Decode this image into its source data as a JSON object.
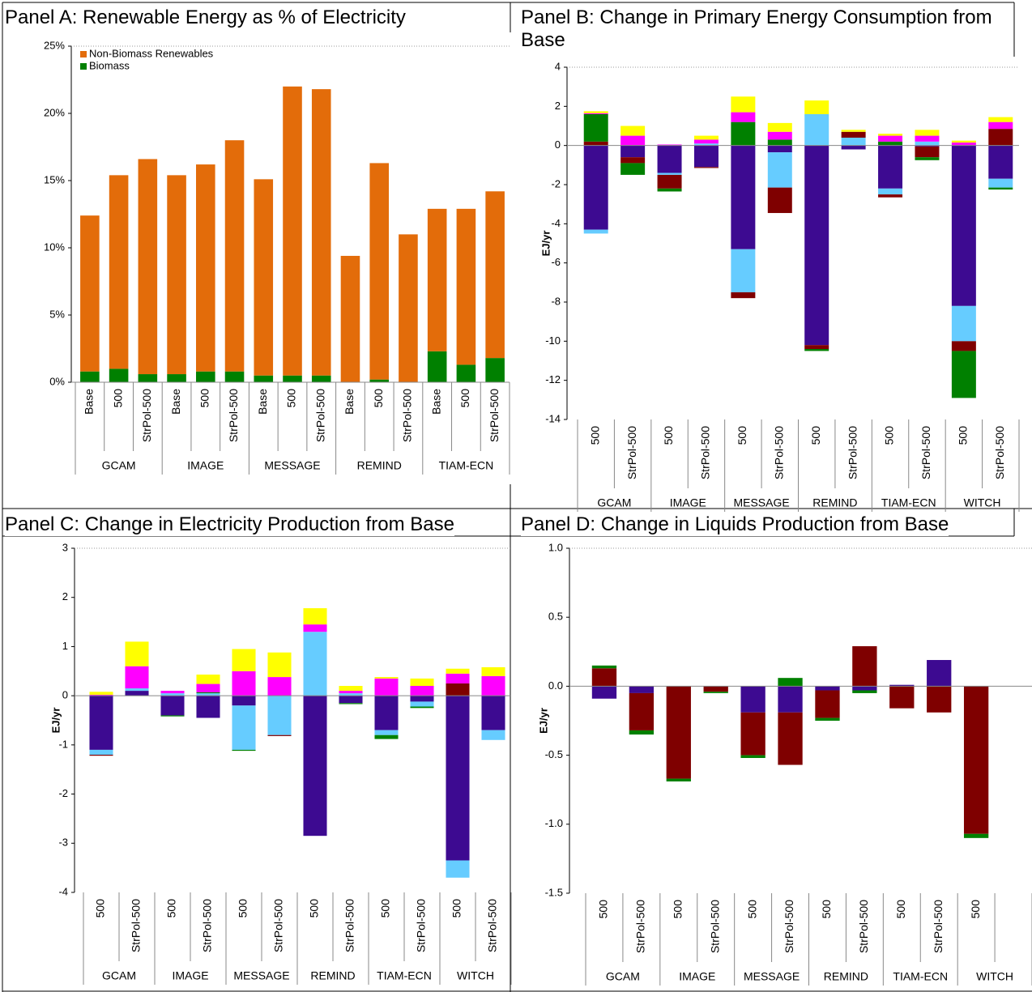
{
  "chart_data": [
    {
      "type": "bar",
      "stacked": true,
      "title": "Panel A: Renewable Energy as % of Electricity",
      "categories": [
        "Base",
        "500",
        "StrPol-500",
        "Base",
        "500",
        "StrPol-500",
        "Base",
        "500",
        "StrPol-500",
        "Base",
        "500",
        "StrPol-500",
        "Base",
        "500",
        "StrPol-500"
      ],
      "groups": [
        "GCAM",
        "IMAGE",
        "MESSAGE",
        "REMIND",
        "TIAM-ECN"
      ],
      "series": [
        {
          "name": "Biomass",
          "color": "#008000",
          "values": [
            0.8,
            1.0,
            0.6,
            0.6,
            0.8,
            0.8,
            0.5,
            0.5,
            0.5,
            0,
            0.2,
            0,
            2.3,
            1.3,
            1.8
          ]
        },
        {
          "name": "Non-Biomass Renewables",
          "color": "#e36c0a",
          "values": [
            11.6,
            14.4,
            16.0,
            14.8,
            15.4,
            17.2,
            14.6,
            21.5,
            21.3,
            9.4,
            16.1,
            11.0,
            10.6,
            11.6,
            12.4
          ]
        }
      ],
      "ylim": [
        0,
        25
      ],
      "yticks": [
        {
          "value": 0,
          "label": "0%"
        },
        {
          "value": 5,
          "label": "5%"
        },
        {
          "value": 10,
          "label": "10%"
        },
        {
          "value": 15,
          "label": "15%"
        },
        {
          "value": 20,
          "label": "20%"
        },
        {
          "value": 25,
          "label": "25%"
        }
      ],
      "legend": "top-left"
    },
    {
      "type": "bar",
      "stacked": true,
      "title": "Panel B: Change in Primary Energy Consumption from Base",
      "y_label": "EJ/yr",
      "categories": [
        "500",
        "StrPol-500",
        "500",
        "StrPol-500",
        "500",
        "StrPol-500",
        "500",
        "StrPol-500",
        "500",
        "StrPol-500",
        "500",
        "StrPol-500"
      ],
      "groups": [
        "GCAM",
        "IMAGE",
        "MESSAGE",
        "REMIND",
        "TIAM-ECN",
        "WITCH"
      ],
      "series": [
        {
          "color": "#3d0a91",
          "values": [
            -4.3,
            -0.6,
            -1.4,
            -1.1,
            -5.3,
            -0.35,
            -10.2,
            -0.2,
            -2.2,
            -0.05,
            -8.2,
            -1.7
          ]
        },
        {
          "color": "#66ccff",
          "values": [
            -0.2,
            0,
            -0.1,
            0.1,
            -2.2,
            -1.8,
            1.6,
            0.4,
            -0.3,
            0.2,
            -1.8,
            -0.45
          ]
        },
        {
          "color": "#7f0000",
          "values": [
            0.2,
            -0.3,
            -0.7,
            -0.05,
            -0.3,
            -1.3,
            -0.2,
            0.3,
            -0.15,
            -0.55,
            -0.5,
            0.85
          ]
        },
        {
          "color": "#008000",
          "values": [
            1.4,
            -0.6,
            -0.15,
            0,
            1.2,
            0.3,
            -0.1,
            0,
            0.2,
            -0.15,
            -2.4,
            -0.1
          ]
        },
        {
          "color": "#ff00ff",
          "values": [
            0.05,
            0.5,
            0.05,
            0.2,
            0.5,
            0.4,
            0,
            0,
            0.3,
            0.3,
            0.15,
            0.35
          ]
        },
        {
          "color": "#ffff00",
          "values": [
            0.1,
            0.5,
            0,
            0.2,
            0.8,
            0.45,
            0.7,
            0.1,
            0.1,
            0.3,
            0.1,
            0.25
          ]
        }
      ],
      "ylim": [
        -14,
        4
      ],
      "yticks": [
        -14,
        -12,
        -10,
        -8,
        -6,
        -4,
        -2,
        0,
        2,
        4
      ]
    },
    {
      "type": "bar",
      "stacked": true,
      "title": "Panel C: Change in Electricity Production from Base",
      "y_label": "EJ/yr",
      "categories": [
        "500",
        "StrPol-500",
        "500",
        "StrPol-500",
        "500",
        "StrPol-500",
        "500",
        "StrPol-500",
        "500",
        "StrPol-500",
        "500",
        "StrPol-500"
      ],
      "groups": [
        "GCAM",
        "IMAGE",
        "MESSAGE",
        "REMIND",
        "TIAM-ECN",
        "WITCH"
      ],
      "series": [
        {
          "color": "#3d0a91",
          "values": [
            -1.1,
            0.1,
            -0.4,
            -0.45,
            -0.2,
            0,
            -2.85,
            -0.15,
            -0.7,
            -0.12,
            -3.35,
            -0.7
          ]
        },
        {
          "color": "#66ccff",
          "values": [
            -0.1,
            0.05,
            0.05,
            0.05,
            -0.9,
            -0.8,
            1.3,
            0.05,
            -0.1,
            -0.1,
            -0.35,
            -0.2
          ]
        },
        {
          "color": "#7f0000",
          "values": [
            -0.02,
            0,
            0,
            0,
            0,
            -0.02,
            0,
            0,
            0,
            0,
            0.25,
            0
          ]
        },
        {
          "color": "#008000",
          "values": [
            0,
            0,
            -0.02,
            0.02,
            -0.02,
            0,
            0,
            -0.02,
            -0.08,
            -0.03,
            0,
            0
          ]
        },
        {
          "color": "#ff00ff",
          "values": [
            0.02,
            0.45,
            0.05,
            0.17,
            0.5,
            0.38,
            0.15,
            0.05,
            0.35,
            0.2,
            0.2,
            0.4
          ]
        },
        {
          "color": "#ffff00",
          "values": [
            0.06,
            0.5,
            0,
            0.19,
            0.45,
            0.5,
            0.33,
            0.1,
            0.03,
            0.15,
            0.1,
            0.18
          ]
        }
      ],
      "ylim": [
        -4,
        3
      ],
      "yticks": [
        -4,
        -3,
        -2,
        -1,
        0,
        1,
        2,
        3
      ]
    },
    {
      "type": "bar",
      "stacked": true,
      "title": "Panel D: Change in Liquids Production from Base",
      "y_label": "EJ/yr",
      "categories": [
        "500",
        "StrPol-500",
        "500",
        "StrPol-500",
        "500",
        "StrPol-500",
        "500",
        "StrPol-500",
        "500",
        "StrPol-500",
        "500"
      ],
      "groups": [
        "GCAM",
        "IMAGE",
        "MESSAGE",
        "REMIND",
        "TIAM-ECN",
        "WITCH"
      ],
      "series": [
        {
          "color": "#3d0a91",
          "values": [
            -0.09,
            -0.05,
            0,
            0,
            -0.19,
            -0.19,
            -0.03,
            -0.03,
            0.01,
            0.19,
            0
          ]
        },
        {
          "color": "#7f0000",
          "values": [
            0.13,
            -0.27,
            -0.67,
            -0.04,
            -0.31,
            -0.38,
            -0.2,
            0.29,
            -0.16,
            -0.19,
            -1.07
          ]
        },
        {
          "color": "#008000",
          "values": [
            0.02,
            -0.03,
            -0.02,
            -0.01,
            -0.02,
            0.06,
            -0.02,
            -0.02,
            0,
            0,
            -0.03
          ]
        }
      ],
      "ylim": [
        -1.5,
        1
      ],
      "yticks": [
        -1.5,
        {
          "value": -1,
          "label": "-1.0"
        },
        -0.5,
        {
          "value": 0,
          "label": "0.0"
        },
        0.5,
        {
          "value": 1,
          "label": "1.0"
        }
      ]
    }
  ]
}
